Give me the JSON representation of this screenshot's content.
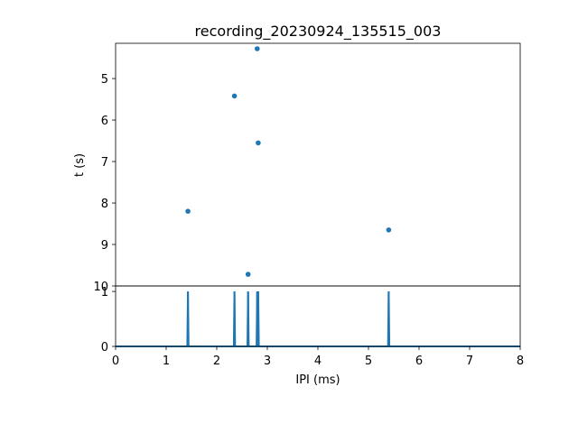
{
  "chart_data": [
    {
      "type": "scatter",
      "title": "recording_20230924_135515_003",
      "xlabel": "",
      "ylabel": "t (s)",
      "xlim": [
        0,
        8
      ],
      "ylim": [
        10,
        4.15
      ],
      "y_inverted": true,
      "y_ticks": [
        5,
        6,
        7,
        8,
        9,
        10
      ],
      "x_ticks_shown": false,
      "color": "#1f77b4",
      "points": [
        {
          "x": 2.8,
          "y": 4.28
        },
        {
          "x": 2.35,
          "y": 5.42
        },
        {
          "x": 2.82,
          "y": 6.55
        },
        {
          "x": 1.43,
          "y": 8.2
        },
        {
          "x": 5.4,
          "y": 8.65
        },
        {
          "x": 2.62,
          "y": 9.72
        }
      ]
    },
    {
      "type": "line",
      "xlabel": "IPI (ms)",
      "ylabel": "",
      "xlim": [
        0,
        8
      ],
      "ylim": [
        0,
        1.1
      ],
      "x_ticks": [
        0,
        1,
        2,
        3,
        4,
        5,
        6,
        7,
        8
      ],
      "y_ticks": [
        0,
        1
      ],
      "color": "#1f77b4",
      "baseline": 0,
      "spikes": [
        {
          "x": 1.43,
          "y": 1
        },
        {
          "x": 2.35,
          "y": 1
        },
        {
          "x": 2.62,
          "y": 1
        },
        {
          "x": 2.8,
          "y": 1
        },
        {
          "x": 2.82,
          "y": 1
        },
        {
          "x": 5.4,
          "y": 1
        }
      ]
    }
  ]
}
